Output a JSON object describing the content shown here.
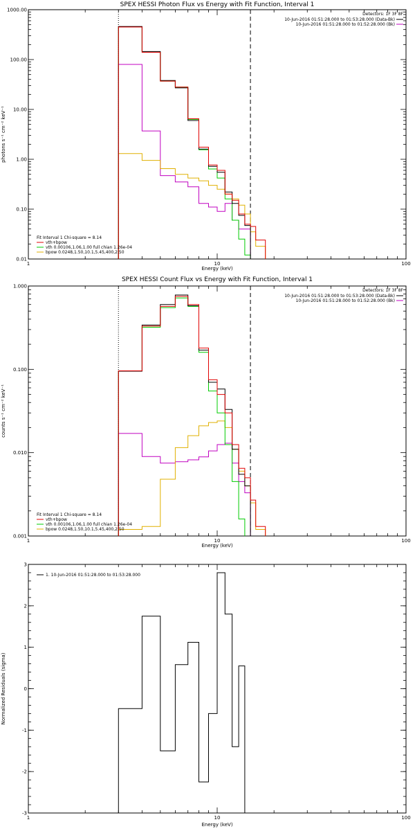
{
  "colors": {
    "data": "#000000",
    "fit_total": "#e00000",
    "vth": "#00cc00",
    "bpow": "#e0b000",
    "background": "#c000c0"
  },
  "chart_data": [
    {
      "type": "line",
      "title": "SPEX HESSI Photon Flux vs Energy with Fit Function, Interval 1",
      "xlabel": "Energy (keV)",
      "ylabel": "photons s⁻¹ cm⁻² keV⁻¹",
      "xscale": "log",
      "yscale": "log",
      "xlim": [
        1,
        100
      ],
      "ylim": [
        0.01,
        1000
      ],
      "x_tick_labels": [
        "1",
        "10",
        "100"
      ],
      "y_tick_labels": [
        "0.01",
        "0.10",
        "1.00",
        "10.00",
        "100.00",
        "1000.00"
      ],
      "fit_range_keV": [
        3,
        15
      ],
      "detectors": "Detectors: 1F 3F 8F",
      "time_ranges": [
        "10-Jun-2016 01:51:28.000 to 01:53:28.000 (Data-Bk)",
        "10-Jun-2016 01:51:28.000 to 01:52:28.000 (Bk)"
      ],
      "legend": {
        "header": "Fit Interval 1   Chi-square = 8.14",
        "entries": [
          "vth+bpow",
          "vth 0.00106,1.06,1.00  full chian 1.26e-04",
          "bpow 0.0248,1.50,10.1,5.45,400,2.50"
        ]
      },
      "edges": [
        3,
        4,
        5,
        6,
        7,
        8,
        9,
        10,
        11,
        12,
        13,
        14,
        15,
        16,
        18
      ],
      "series": [
        {
          "name": "vth+bpow",
          "color_key": "fit_total",
          "values": [
            450,
            140,
            37,
            28,
            6.5,
            1.75,
            0.77,
            0.6,
            0.2,
            0.15,
            0.08,
            0.05,
            0.045,
            0.024
          ]
        },
        {
          "color_key": "data",
          "values": [
            460,
            145,
            38,
            27,
            6.0,
            1.6,
            0.72,
            0.55,
            0.22,
            0.13,
            0.075,
            0.047,
            null,
            null
          ]
        },
        {
          "name": "vth",
          "color_key": "vth",
          "values": [
            450,
            140,
            37,
            28,
            6.3,
            1.55,
            0.64,
            0.42,
            0.16,
            0.06,
            0.025,
            0.012,
            null,
            null
          ]
        },
        {
          "name": "bpow",
          "color_key": "bpow",
          "values": [
            1.3,
            0.95,
            0.65,
            0.5,
            0.42,
            0.37,
            0.3,
            0.25,
            0.2,
            0.16,
            0.12,
            0.08,
            0.035,
            0.018
          ]
        },
        {
          "color_key": "background",
          "values": [
            80,
            3.7,
            0.47,
            0.35,
            0.28,
            0.13,
            0.11,
            0.09,
            0.13,
            0.06,
            0.04,
            0.04,
            null,
            null
          ]
        }
      ]
    },
    {
      "type": "line",
      "title": "SPEX HESSI Count Flux vs Energy with Fit Function, Interval 1",
      "xlabel": "Energy (keV)",
      "ylabel": "counts s⁻¹ cm⁻² keV⁻¹",
      "xscale": "log",
      "yscale": "log",
      "xlim": [
        1,
        100
      ],
      "ylim": [
        0.001,
        1
      ],
      "x_tick_labels": [
        "1",
        "10",
        "100"
      ],
      "y_tick_labels": [
        "0.001",
        "0.010",
        "0.100",
        "1.000"
      ],
      "fit_range_keV": [
        3,
        15
      ],
      "detectors": "Detectors: 1F 3F 8F",
      "time_ranges": [
        "10-Jun-2016 01:51:28.000 to 01:53:28.000 (Data-Bk)",
        "10-Jun-2016 01:51:28.000 to 01:52:28.000 (Bk)"
      ],
      "legend": {
        "header": "Fit Interval 1   Chi-square = 8.14",
        "entries": [
          "vth+bpow",
          "vth 0.00106,1.06,1.00  full chian 1.26e-04",
          "bpow 0.0248,1.50,10.1,5.45,400,2.50"
        ]
      },
      "edges": [
        3,
        4,
        5,
        6,
        7,
        8,
        9,
        10,
        11,
        12,
        13,
        14,
        15,
        16,
        18
      ],
      "series": [
        {
          "name": "vth+bpow",
          "color_key": "fit_total",
          "values": [
            0.096,
            0.33,
            0.57,
            0.75,
            0.6,
            0.18,
            0.075,
            0.05,
            0.03,
            0.0125,
            0.0065,
            0.005,
            0.0027,
            0.0013
          ]
        },
        {
          "color_key": "data",
          "values": [
            0.095,
            0.34,
            0.6,
            0.78,
            0.58,
            0.17,
            0.07,
            0.058,
            0.033,
            0.011,
            0.0055,
            0.004,
            null,
            null
          ]
        },
        {
          "name": "vth",
          "color_key": "vth",
          "values": [
            0.095,
            0.32,
            0.55,
            0.72,
            0.57,
            0.16,
            0.055,
            0.03,
            0.0125,
            0.0045,
            0.0016,
            0.0005,
            null,
            null
          ]
        },
        {
          "name": "bpow",
          "color_key": "bpow",
          "values": [
            0.0012,
            0.0013,
            0.0048,
            0.0115,
            0.016,
            0.021,
            0.023,
            0.024,
            0.02,
            0.011,
            0.006,
            0.004,
            0.0025,
            0.0012
          ]
        },
        {
          "color_key": "background",
          "values": [
            0.017,
            0.009,
            0.0075,
            0.0078,
            0.0082,
            0.0089,
            0.0105,
            0.0125,
            0.013,
            0.0075,
            0.0045,
            0.0033,
            null,
            null
          ]
        }
      ]
    },
    {
      "type": "line",
      "xlabel": "Energy (keV)",
      "ylabel": "Normalized Residuals (sigma)",
      "xscale": "log",
      "yscale": "linear",
      "xlim": [
        1,
        100
      ],
      "ylim": [
        -3,
        3
      ],
      "x_tick_labels": [
        "1",
        "10",
        "100"
      ],
      "y_tick_labels": [
        "-3",
        "-2",
        "-1",
        "0",
        "1",
        "2",
        "3"
      ],
      "legend": {
        "entries": [
          "1. 10-Jun-2016 01:51:28.000 to 01:53:28.000"
        ]
      },
      "edges": [
        3,
        4,
        5,
        6,
        7,
        8,
        9,
        10,
        11,
        12,
        13,
        14,
        15
      ],
      "series": [
        {
          "color_key": "data",
          "values": [
            -0.48,
            1.75,
            -1.5,
            0.58,
            1.12,
            -2.25,
            -0.6,
            2.8,
            1.8,
            -1.4,
            0.55,
            null
          ]
        }
      ]
    }
  ]
}
